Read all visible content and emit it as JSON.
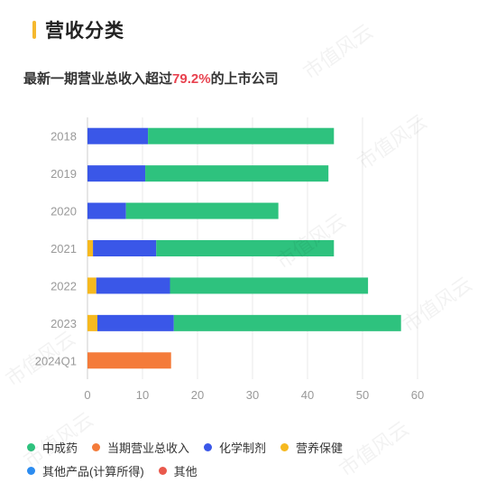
{
  "header": {
    "title": "营收分类"
  },
  "subtitle": {
    "prefix": "最新一期营业总收入超过",
    "highlight": "79.2%",
    "suffix": "的上市公司"
  },
  "colors": {
    "中成药": "#2ec27e",
    "当期营业总收入": "#f47b3a",
    "化学制剂": "#3a57e8",
    "营养保健": "#f6b91f",
    "其他产品(计算所得)": "#2c8cf0",
    "其他": "#e9594c",
    "axis": "#999999",
    "grid": "#e8e8e8"
  },
  "chart_data": {
    "type": "bar",
    "orientation": "horizontal",
    "stacked": true,
    "categories": [
      "2018",
      "2019",
      "2020",
      "2021",
      "2022",
      "2023",
      "2024Q1"
    ],
    "series": [
      {
        "name": "营养保健",
        "values": [
          0,
          0,
          0,
          1.0,
          1.6,
          1.8,
          0
        ]
      },
      {
        "name": "化学制剂",
        "values": [
          11.0,
          10.5,
          7.0,
          11.5,
          13.4,
          13.9,
          0
        ]
      },
      {
        "name": "中成药",
        "values": [
          33.8,
          33.3,
          27.7,
          32.3,
          36.0,
          41.3,
          0
        ]
      },
      {
        "name": "当期营业总收入",
        "values": [
          0,
          0,
          0,
          0,
          0,
          0,
          15.2
        ]
      }
    ],
    "xticks": [
      "0",
      "10",
      "20",
      "30",
      "40",
      "50",
      "60"
    ],
    "xlim": [
      0,
      60
    ],
    "grid": "vertical",
    "legend_position": "bottom",
    "legend": [
      "中成药",
      "当期营业总收入",
      "化学制剂",
      "营养保健",
      "其他产品(计算所得)",
      "其他"
    ]
  },
  "watermark": "市值风云"
}
